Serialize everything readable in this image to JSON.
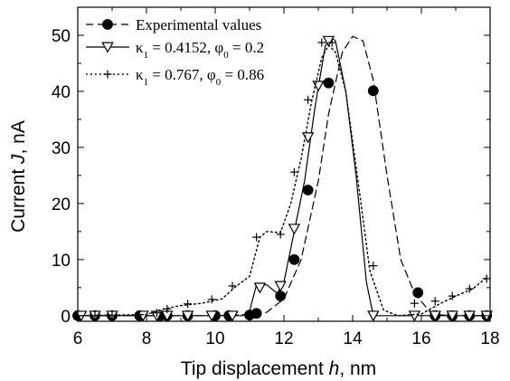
{
  "chart_data": {
    "type": "line",
    "xlabel": {
      "prefix": "Tip displacement ",
      "variable": "h",
      "suffix": ", nm"
    },
    "ylabel": {
      "prefix": "Current ",
      "variable": "J",
      "suffix": ", nA"
    },
    "xlim": [
      6,
      18
    ],
    "ylim": [
      -1,
      55
    ],
    "x_ticks": [
      6,
      8,
      10,
      12,
      14,
      16,
      18
    ],
    "y_ticks": [
      0,
      10,
      20,
      30,
      40,
      50
    ],
    "grid": false,
    "legend_position": "top-left",
    "series": [
      {
        "name": "Experimental values",
        "style": "dashed",
        "marker": "filled-circle",
        "color": "#000000",
        "curve": [
          [
            6.0,
            0.0
          ],
          [
            10.0,
            0.0
          ],
          [
            11.0,
            0.2
          ],
          [
            11.5,
            0.6
          ],
          [
            12.0,
            3.0
          ],
          [
            12.5,
            10.0
          ],
          [
            13.0,
            24.0
          ],
          [
            13.3,
            36.0
          ],
          [
            13.7,
            47.0
          ],
          [
            14.0,
            49.8
          ],
          [
            14.3,
            49.0
          ],
          [
            14.6,
            42.0
          ],
          [
            15.0,
            25.0
          ],
          [
            15.4,
            10.0
          ],
          [
            15.8,
            4.0
          ],
          [
            16.3,
            0.3
          ],
          [
            16.8,
            0.0
          ],
          [
            18.0,
            0.0
          ]
        ],
        "x": [
          6.0,
          6.5,
          7.0,
          7.8,
          8.4,
          8.6,
          9.2,
          10.0,
          10.4,
          11.0,
          11.2,
          11.9,
          12.3,
          12.7,
          13.3,
          14.6,
          15.9,
          16.4,
          16.9,
          17.4,
          17.9
        ],
        "y": [
          0.0,
          0.0,
          0.0,
          0.0,
          0.0,
          0.0,
          0.0,
          0.0,
          0.0,
          0.1,
          0.4,
          3.5,
          10.0,
          22.4,
          41.5,
          40.1,
          4.1,
          0.0,
          0.0,
          0.0,
          0.0
        ]
      },
      {
        "name_parts": {
          "kappa": "κ",
          "kappa_sub": "1",
          "kappa_value": " = 0.4152,  ",
          "phi": "φ",
          "phi_sub": "0",
          "phi_value": " = 0.2"
        },
        "style": "solid",
        "marker": "open-triangle-down",
        "color": "#000000",
        "curve": [
          [
            6.0,
            0.0
          ],
          [
            10.8,
            0.0
          ],
          [
            11.0,
            0.8
          ],
          [
            11.2,
            5.5
          ],
          [
            11.5,
            5.5
          ],
          [
            11.8,
            4.0
          ],
          [
            12.0,
            6.0
          ],
          [
            12.3,
            15.0
          ],
          [
            12.6,
            24.0
          ],
          [
            12.9,
            37.0
          ],
          [
            13.2,
            48.0
          ],
          [
            13.35,
            49.7
          ],
          [
            13.5,
            49.0
          ],
          [
            13.8,
            40.0
          ],
          [
            14.1,
            25.0
          ],
          [
            14.4,
            6.0
          ],
          [
            14.6,
            0.0
          ],
          [
            18.0,
            0.0
          ]
        ],
        "x": [
          6.1,
          6.5,
          7.0,
          7.9,
          8.3,
          8.6,
          9.2,
          9.9,
          10.5,
          11.3,
          11.9,
          12.3,
          12.7,
          13.0,
          13.3,
          14.6,
          15.8,
          16.4,
          16.9,
          17.4,
          17.9
        ],
        "y": [
          0.0,
          0.0,
          0.0,
          0.0,
          0.0,
          0.0,
          0.0,
          0.0,
          0.0,
          5.0,
          5.3,
          15.5,
          31.8,
          41.0,
          49.0,
          0.0,
          0.0,
          0.0,
          0.0,
          0.0,
          0.0
        ]
      },
      {
        "name_parts": {
          "kappa": "κ",
          "kappa_sub": "1",
          "kappa_value": " = 0.767,  ",
          "phi": "φ",
          "phi_sub": "0",
          "phi_value": " = 0.86"
        },
        "style": "dotted",
        "marker": "plus",
        "color": "#000000",
        "curve": [
          [
            6.0,
            0.0
          ],
          [
            8.0,
            0.2
          ],
          [
            8.5,
            1.2
          ],
          [
            9.0,
            1.8
          ],
          [
            9.6,
            2.2
          ],
          [
            10.2,
            3.0
          ],
          [
            10.6,
            5.2
          ],
          [
            11.0,
            7.0
          ],
          [
            11.3,
            14.0
          ],
          [
            11.5,
            15.0
          ],
          [
            11.9,
            14.8
          ],
          [
            12.2,
            20.0
          ],
          [
            12.5,
            28.0
          ],
          [
            12.8,
            38.0
          ],
          [
            13.1,
            46.0
          ],
          [
            13.3,
            48.2
          ],
          [
            13.5,
            47.0
          ],
          [
            13.8,
            40.0
          ],
          [
            14.2,
            22.0
          ],
          [
            14.5,
            8.0
          ],
          [
            14.9,
            1.0
          ],
          [
            15.3,
            0.0
          ],
          [
            16.0,
            0.3
          ],
          [
            16.5,
            2.0
          ],
          [
            17.0,
            3.5
          ],
          [
            17.5,
            4.8
          ],
          [
            17.9,
            6.8
          ]
        ],
        "x": [
          6.0,
          6.5,
          7.0,
          7.8,
          8.3,
          8.6,
          9.2,
          9.9,
          10.5,
          11.2,
          11.9,
          12.3,
          12.7,
          13.1,
          13.4,
          14.6,
          15.8,
          16.4,
          16.9,
          17.4,
          17.9
        ],
        "y": [
          0.0,
          0.0,
          0.0,
          0.2,
          0.5,
          1.2,
          2.1,
          2.9,
          5.3,
          14.0,
          14.5,
          25.6,
          38.5,
          48.7,
          48.7,
          8.9,
          2.2,
          2.6,
          3.5,
          4.8,
          6.6
        ]
      }
    ]
  }
}
